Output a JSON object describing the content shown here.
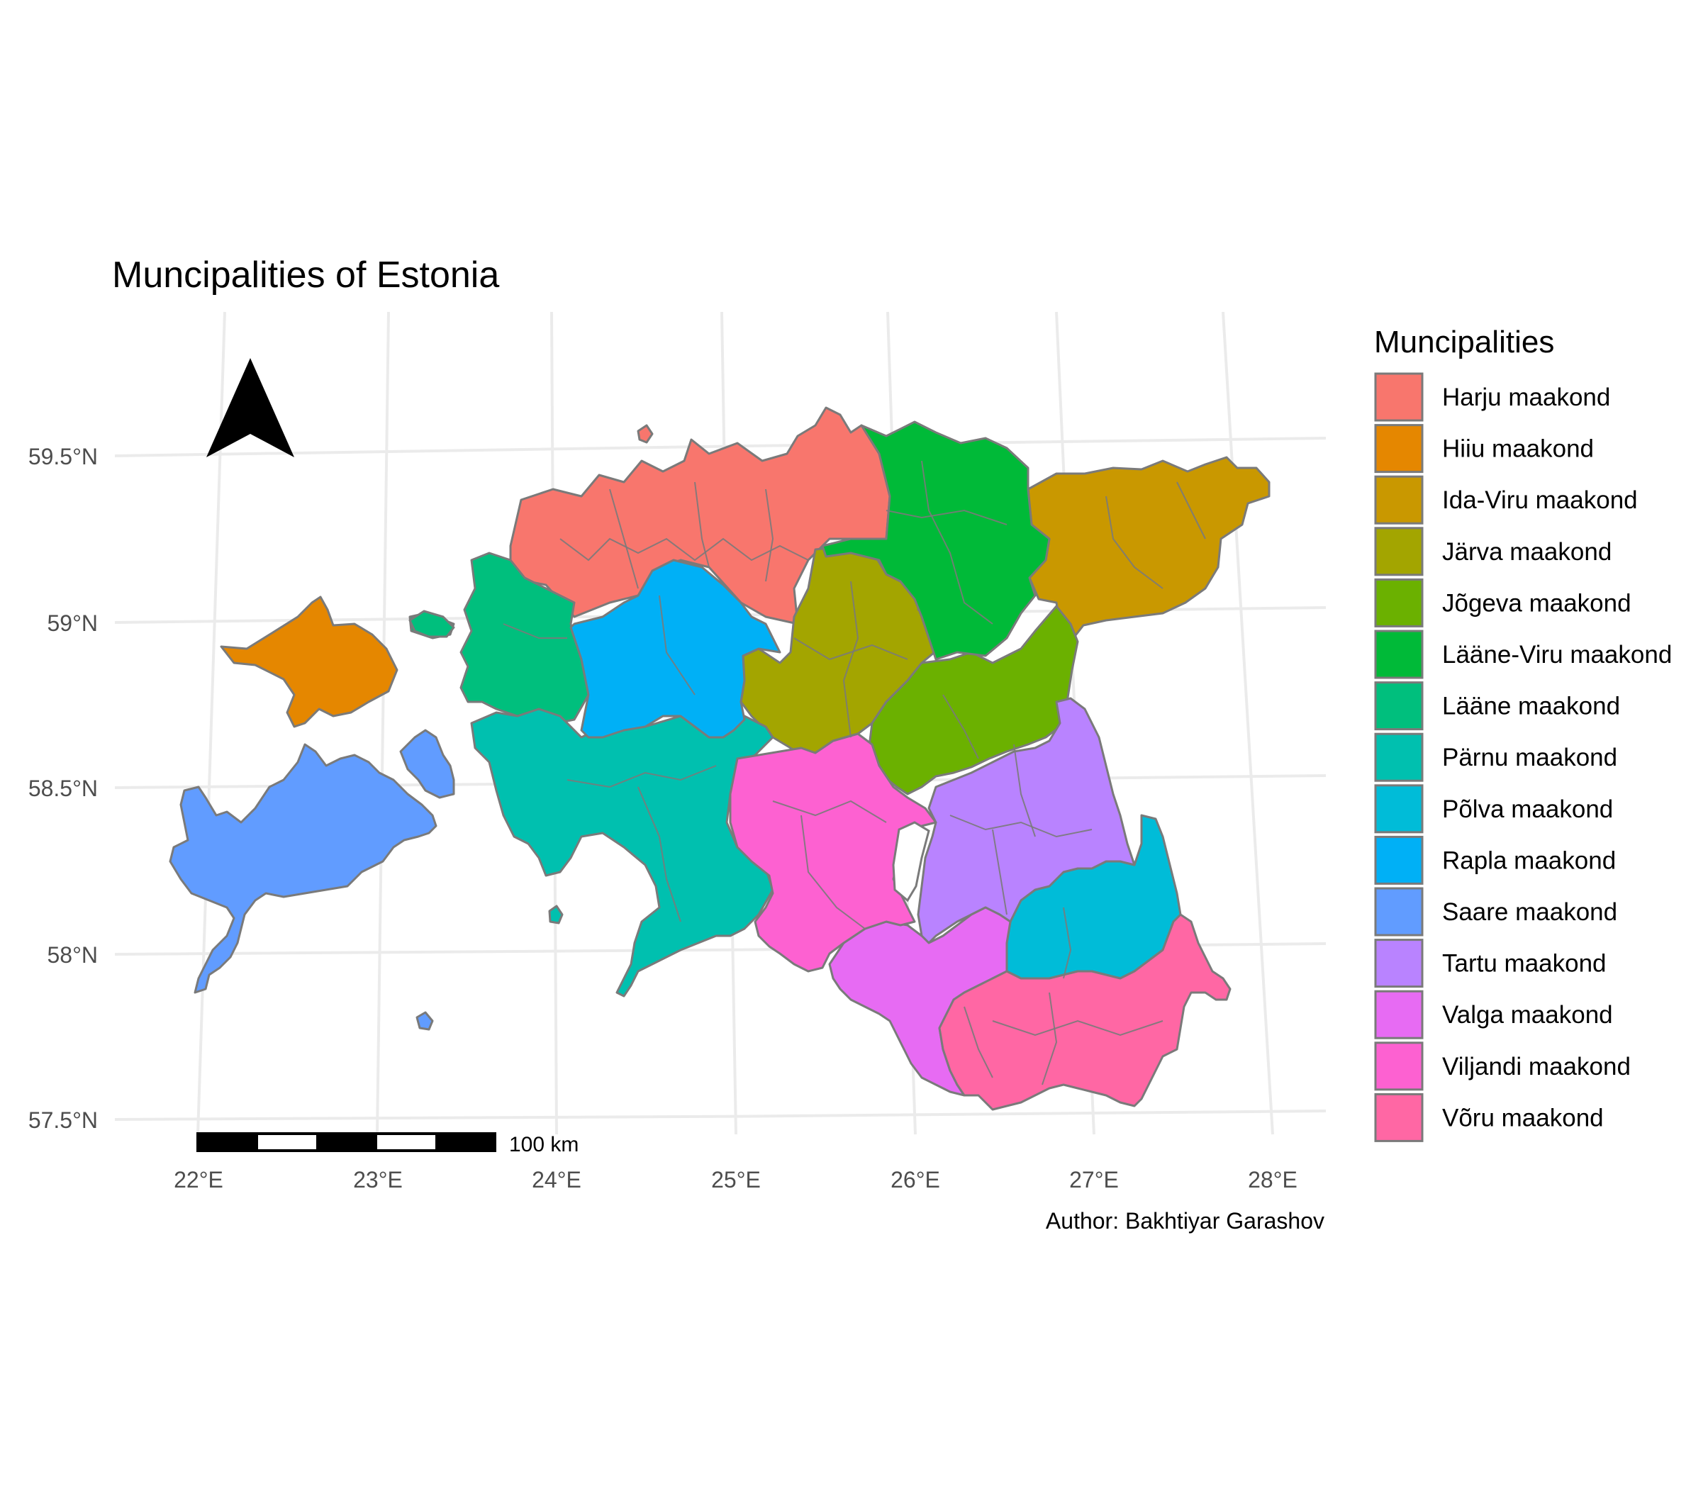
{
  "title": "Muncipalities of Estonia",
  "caption": "Author: Bakhtiyar Garashov",
  "scale_bar": {
    "label": "100 km",
    "segments": 5
  },
  "north_arrow": {
    "icon": "north-arrow-icon"
  },
  "axes": {
    "x_ticks": [
      "22°E",
      "23°E",
      "24°E",
      "25°E",
      "26°E",
      "27°E",
      "28°E"
    ],
    "y_ticks": [
      "59.5°N",
      "59°N",
      "58.5°N",
      "58°N",
      "57.5°N"
    ]
  },
  "legend": {
    "title": "Muncipalities",
    "items": [
      {
        "label": "Harju maakond",
        "color": "#F8766D"
      },
      {
        "label": "Hiiu maakond",
        "color": "#E58700"
      },
      {
        "label": "Ida-Viru maakond",
        "color": "#C99800"
      },
      {
        "label": "Järva maakond",
        "color": "#A3A500"
      },
      {
        "label": "Jõgeva maakond",
        "color": "#6BB100"
      },
      {
        "label": "Lääne-Viru maakond",
        "color": "#00BA38"
      },
      {
        "label": "Lääne maakond",
        "color": "#00BF7D"
      },
      {
        "label": "Pärnu maakond",
        "color": "#00C0AF"
      },
      {
        "label": "Põlva maakond",
        "color": "#00BCD8"
      },
      {
        "label": "Rapla maakond",
        "color": "#00B0F6"
      },
      {
        "label": "Saare maakond",
        "color": "#619CFF"
      },
      {
        "label": "Tartu maakond",
        "color": "#B983FF"
      },
      {
        "label": "Valga maakond",
        "color": "#E76BF3"
      },
      {
        "label": "Viljandi maakond",
        "color": "#FD61D1"
      },
      {
        "label": "Võru maakond",
        "color": "#FF67A4"
      }
    ]
  }
}
